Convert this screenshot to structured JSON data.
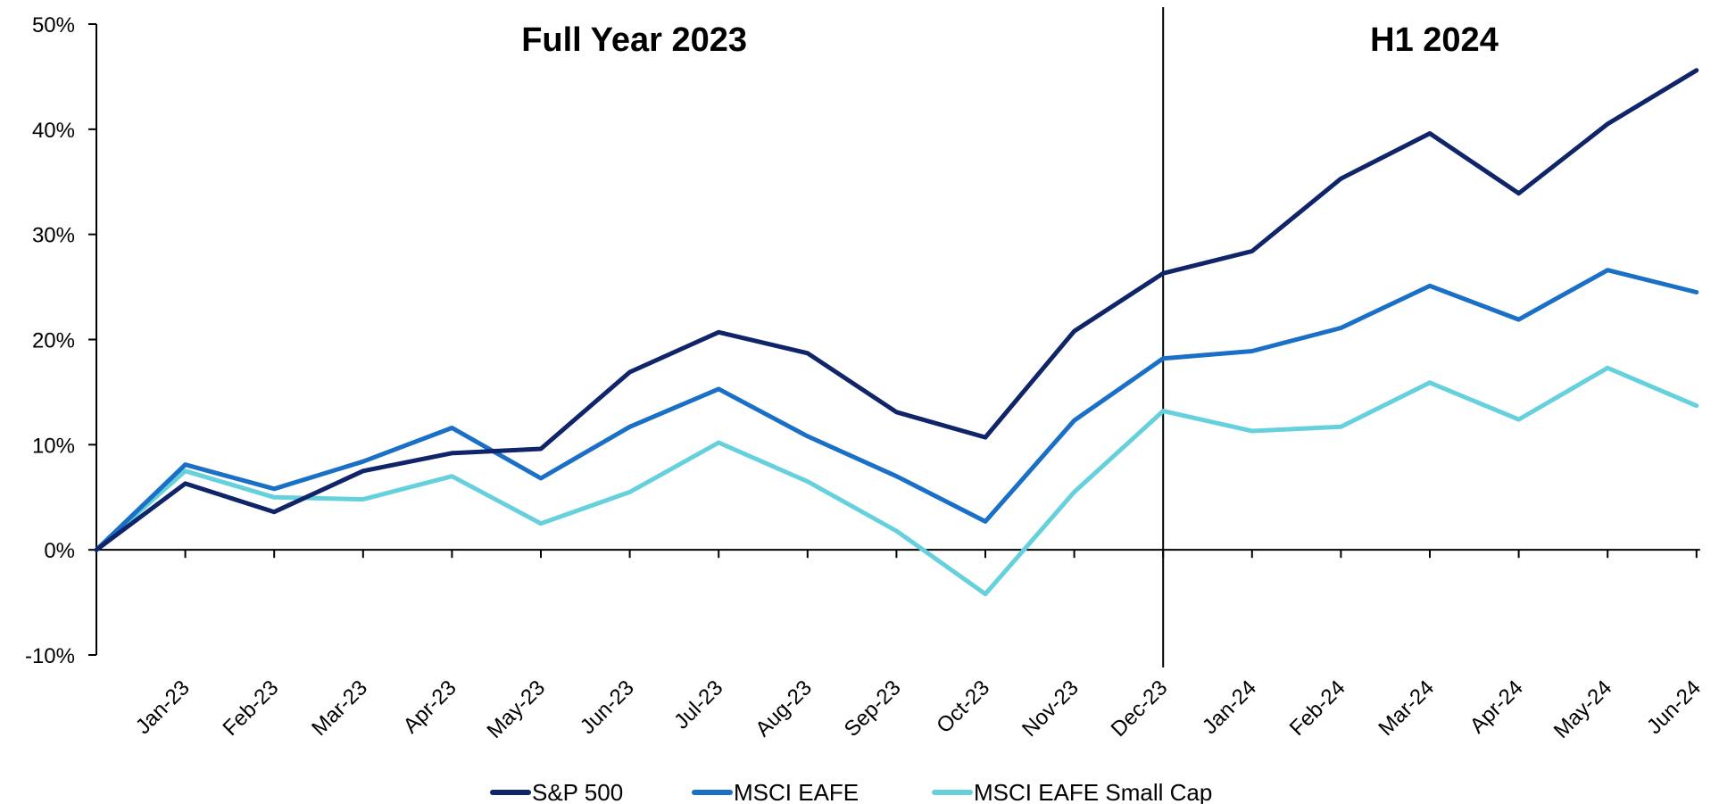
{
  "chart_data": {
    "type": "line",
    "title": "",
    "xlabel": "",
    "ylabel": "",
    "ylim": [
      -10,
      50
    ],
    "y_ticks": [
      "50%",
      "40%",
      "30%",
      "20%",
      "10%",
      "0%",
      "-10%"
    ],
    "y_tick_values": [
      50,
      40,
      30,
      20,
      10,
      0,
      -10
    ],
    "categories": [
      "",
      "Jan-23",
      "Feb-23",
      "Mar-23",
      "Apr-23",
      "May-23",
      "Jun-23",
      "Jul-23",
      "Aug-23",
      "Sep-23",
      "Oct-23",
      "Nov-23",
      "Dec-23",
      "Jan-24",
      "Feb-24",
      "Mar-24",
      "Apr-24",
      "May-24",
      "Jun-24"
    ],
    "series": [
      {
        "name": "S&P 500",
        "color": "#0f2469",
        "values": [
          0,
          6.3,
          3.6,
          7.5,
          9.2,
          9.6,
          16.9,
          20.7,
          18.7,
          13.1,
          10.7,
          20.8,
          26.3,
          28.4,
          35.3,
          39.6,
          33.9,
          40.5,
          45.6
        ]
      },
      {
        "name": "MSCI EAFE",
        "color": "#1a6fc6",
        "values": [
          0,
          8.1,
          5.8,
          8.4,
          11.6,
          6.8,
          11.7,
          15.3,
          10.8,
          7.0,
          2.7,
          12.3,
          18.2,
          18.9,
          21.1,
          25.1,
          21.9,
          26.6,
          24.5
        ]
      },
      {
        "name": "MSCI EAFE Small Cap",
        "color": "#66d1dc",
        "values": [
          0,
          7.5,
          5.0,
          4.8,
          7.0,
          2.5,
          5.5,
          10.2,
          6.5,
          1.8,
          -4.2,
          5.5,
          13.2,
          11.3,
          11.7,
          15.9,
          12.4,
          17.3,
          13.7
        ]
      }
    ],
    "annotations": [
      {
        "text": "Full Year 2023"
      },
      {
        "text": "H1 2024"
      }
    ],
    "divider_after_category": "Dec-23",
    "legend_position": "bottom",
    "grid": false
  }
}
